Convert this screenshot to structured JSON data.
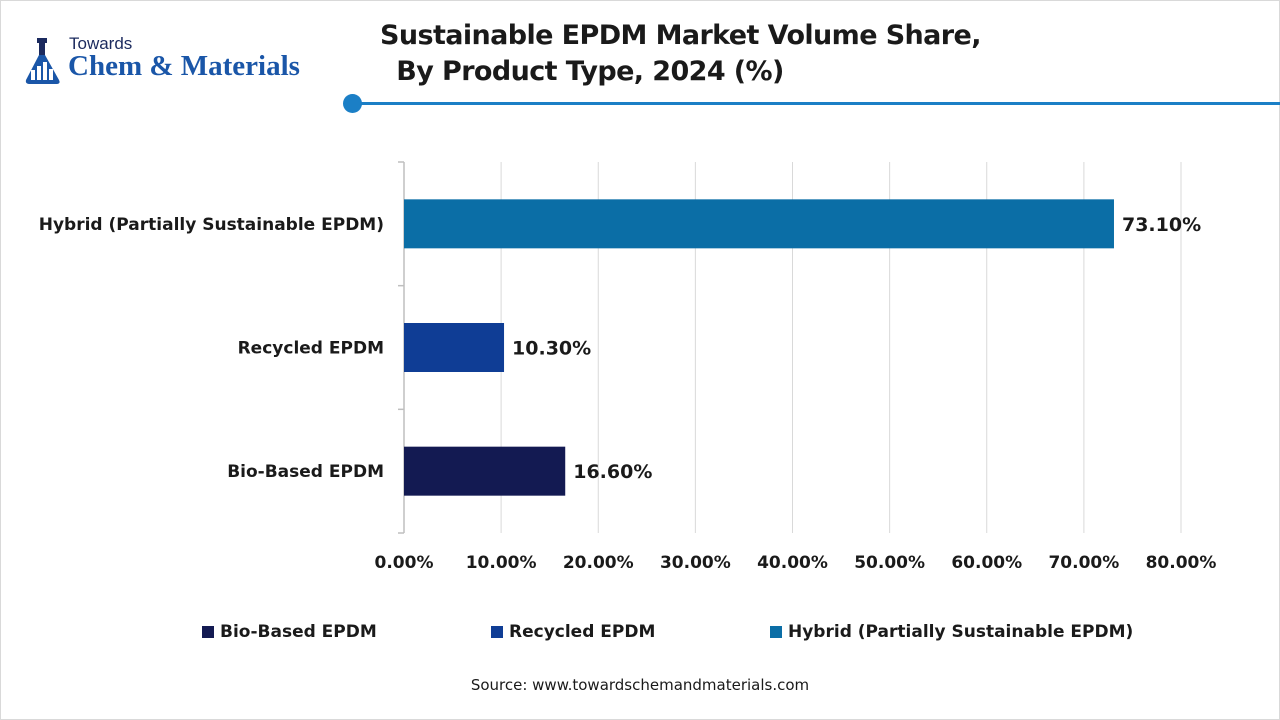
{
  "brand": {
    "top": "Towards",
    "main": "Chem & Materials"
  },
  "source": "Source: www.towardschemandmaterials.com",
  "colors": {
    "bio": "#131a52",
    "recycled": "#0f3d95",
    "hybrid": "#0b6ea6",
    "accent": "#1b7fc6",
    "grid": "#d9d9d9"
  },
  "chart_data": {
    "type": "bar",
    "orientation": "horizontal",
    "title": "Sustainable EPDM Market Volume Share,",
    "subtitle": "By Product Type, 2024 (%)",
    "categories": [
      "Hybrid (Partially Sustainable EPDM)",
      "Recycled EPDM",
      "Bio-Based EPDM"
    ],
    "values": [
      73.1,
      10.3,
      16.6
    ],
    "data_labels": [
      "73.10%",
      "10.30%",
      "16.60%"
    ],
    "xlim": [
      0,
      80
    ],
    "xticks": [
      0,
      10,
      20,
      30,
      40,
      50,
      60,
      70,
      80
    ],
    "xtick_labels": [
      "0.00%",
      "10.00%",
      "20.00%",
      "30.00%",
      "40.00%",
      "50.00%",
      "60.00%",
      "70.00%",
      "80.00%"
    ],
    "grid": true,
    "legend_position": "bottom",
    "legend": [
      "Bio-Based EPDM",
      "Recycled EPDM",
      "Hybrid (Partially Sustainable EPDM)"
    ]
  }
}
